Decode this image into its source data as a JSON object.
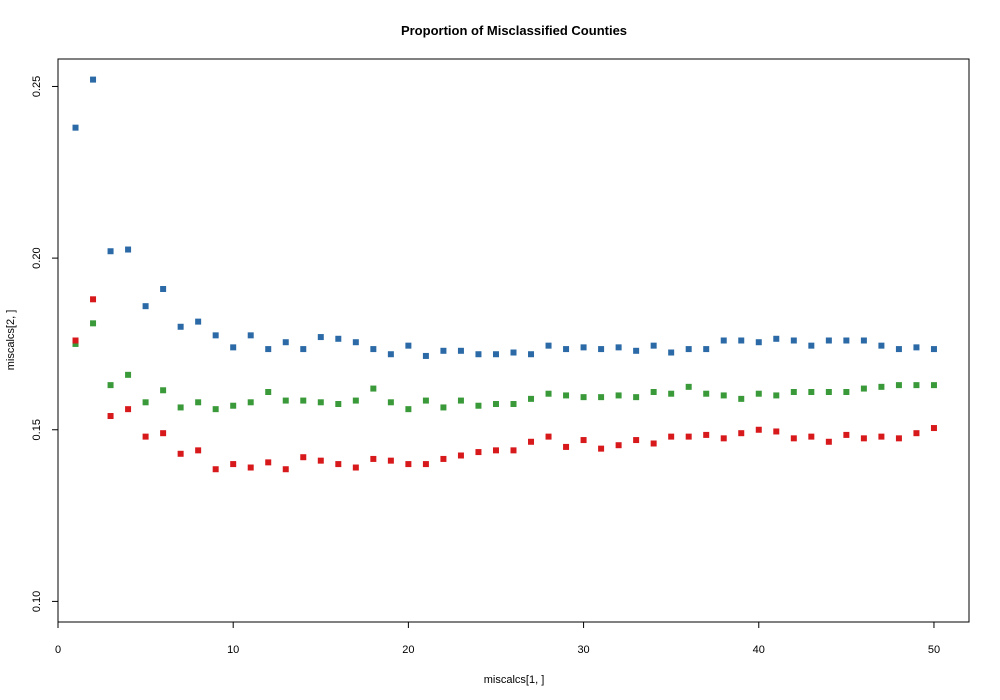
{
  "chart_data": {
    "type": "scatter",
    "title": "Proportion of Misclassified Counties",
    "xlabel": "miscalcs[1, ]",
    "ylabel": "miscalcs[2, ]",
    "xlim": [
      0,
      52
    ],
    "ylim": [
      0.094,
      0.258
    ],
    "xticks": [
      0,
      10,
      20,
      30,
      40,
      50
    ],
    "yticks": [
      0.1,
      0.15,
      0.2,
      0.25
    ],
    "xtick_labels": [
      "0",
      "10",
      "20",
      "30",
      "40",
      "50"
    ],
    "ytick_labels": [
      "0.10",
      "0.15",
      "0.20",
      "0.25"
    ],
    "grid": false,
    "legend": false,
    "x": [
      1,
      2,
      3,
      4,
      5,
      6,
      7,
      8,
      9,
      10,
      11,
      12,
      13,
      14,
      15,
      16,
      17,
      18,
      19,
      20,
      21,
      22,
      23,
      24,
      25,
      26,
      27,
      28,
      29,
      30,
      31,
      32,
      33,
      34,
      35,
      36,
      37,
      38,
      39,
      40,
      41,
      42,
      43,
      44,
      45,
      46,
      47,
      48,
      49,
      50
    ],
    "series": [
      {
        "color": "#2b6aa6",
        "values": [
          0.238,
          0.252,
          0.202,
          0.2025,
          0.186,
          0.191,
          0.18,
          0.1815,
          0.1775,
          0.174,
          0.1775,
          0.1735,
          0.1755,
          0.1735,
          0.177,
          0.1765,
          0.1755,
          0.1735,
          0.172,
          0.1745,
          0.1715,
          0.173,
          0.173,
          0.172,
          0.172,
          0.1725,
          0.172,
          0.1745,
          0.1735,
          0.174,
          0.1735,
          0.174,
          0.173,
          0.1745,
          0.1725,
          0.1735,
          0.1735,
          0.176,
          0.176,
          0.1755,
          0.1765,
          0.176,
          0.1745,
          0.176,
          0.176,
          0.176,
          0.1745,
          0.1735,
          0.174,
          0.1735
        ]
      },
      {
        "color": "#3a9a3a",
        "values": [
          0.175,
          0.181,
          0.163,
          0.166,
          0.158,
          0.1615,
          0.1565,
          0.158,
          0.156,
          0.157,
          0.158,
          0.161,
          0.1585,
          0.1585,
          0.158,
          0.1575,
          0.1585,
          0.162,
          0.158,
          0.156,
          0.1585,
          0.1565,
          0.1585,
          0.157,
          0.1575,
          0.1575,
          0.159,
          0.1605,
          0.16,
          0.1595,
          0.1595,
          0.16,
          0.1595,
          0.161,
          0.1605,
          0.1625,
          0.1605,
          0.16,
          0.159,
          0.1605,
          0.16,
          0.161,
          0.161,
          0.161,
          0.161,
          0.162,
          0.1625,
          0.163,
          0.163,
          0.163
        ]
      },
      {
        "color": "#d7191c",
        "values": [
          0.176,
          0.188,
          0.154,
          0.156,
          0.148,
          0.149,
          0.143,
          0.144,
          0.1385,
          0.14,
          0.139,
          0.1405,
          0.1385,
          0.142,
          0.141,
          0.14,
          0.139,
          0.1415,
          0.141,
          0.14,
          0.14,
          0.1415,
          0.1425,
          0.1435,
          0.144,
          0.144,
          0.1465,
          0.148,
          0.145,
          0.147,
          0.1445,
          0.1455,
          0.147,
          0.146,
          0.148,
          0.148,
          0.1485,
          0.1475,
          0.149,
          0.15,
          0.1495,
          0.1475,
          0.148,
          0.1465,
          0.1485,
          0.1475,
          0.148,
          0.1475,
          0.149,
          0.1505
        ]
      }
    ]
  }
}
